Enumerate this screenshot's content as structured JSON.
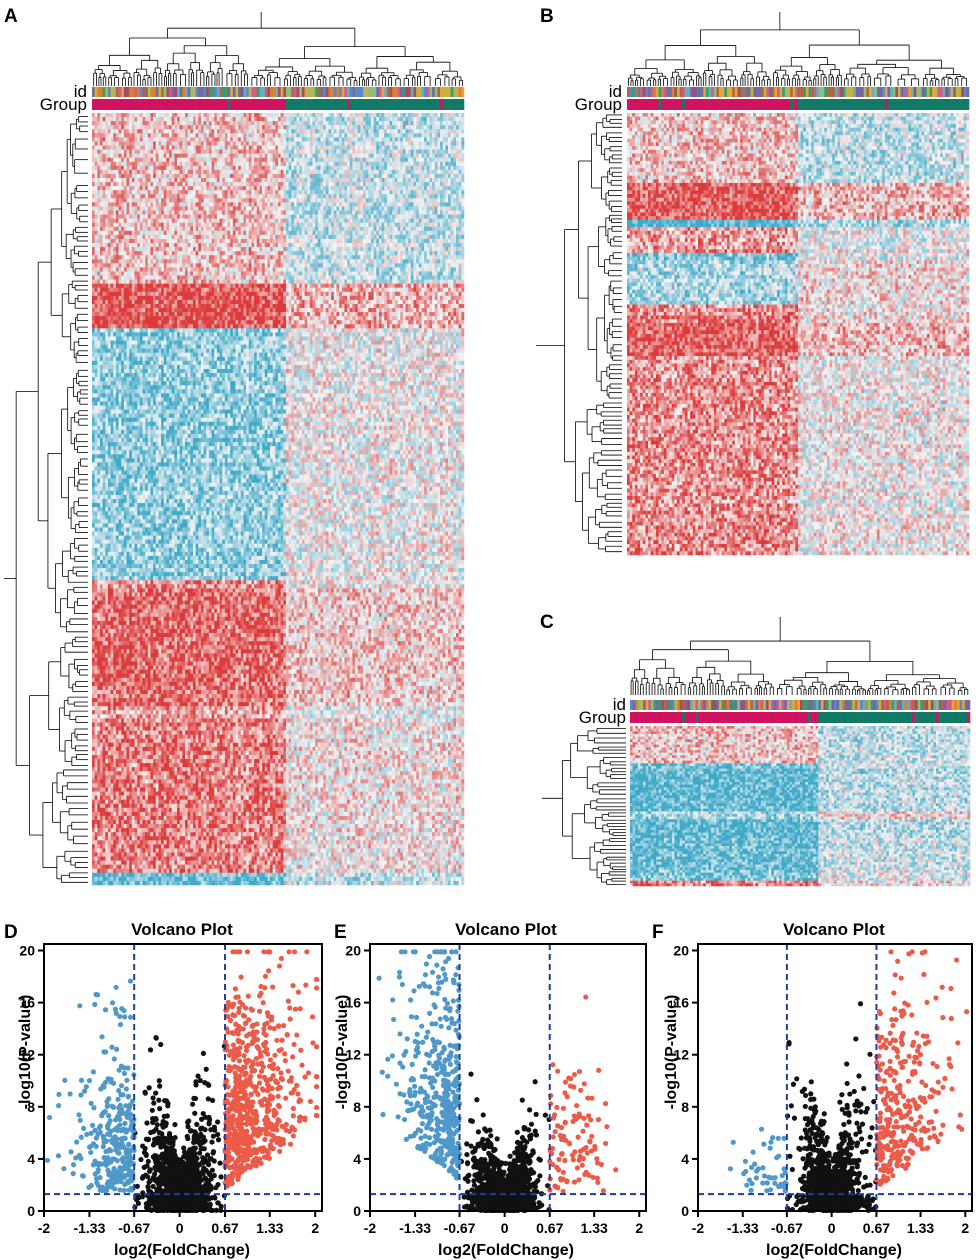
{
  "colors": {
    "heat_low": "#3ea9c8",
    "heat_mid": "#f4f4f4",
    "heat_high": "#dd3a3a",
    "group_a": "#d0125f",
    "group_b": "#117a67",
    "down": "#4f98c9",
    "up": "#ec5a48",
    "ns": "#111111",
    "threshold": "#1f3d99"
  },
  "heatmaps": [
    {
      "letter": "A",
      "id_label": "id",
      "group_label": "Group",
      "columns": 140,
      "rows": 190,
      "group_split": 0.52,
      "seed": 11
    },
    {
      "letter": "B",
      "id_label": "id",
      "group_label": "Group",
      "columns": 130,
      "rows": 120,
      "group_split": 0.5,
      "seed": 23
    },
    {
      "letter": "C",
      "id_label": "id",
      "group_label": "Group",
      "columns": 130,
      "rows": 60,
      "group_split": 0.55,
      "seed": 37
    }
  ],
  "chart_data": [
    {
      "type": "scatter",
      "letter": "D",
      "title": "Volcano Plot",
      "xlabel": "log2(FoldChange)",
      "ylabel": "-log10(P-value)",
      "xlim": [
        -2,
        2.1
      ],
      "ylim": [
        0,
        20.5
      ],
      "xticks": [
        -2,
        -1.33,
        -0.67,
        0,
        0.67,
        1.33,
        2
      ],
      "xtick_labels": [
        "-2",
        "-1.33",
        "-0.67",
        "0",
        "0.67",
        "1.33",
        "2"
      ],
      "yticks": [
        0,
        4,
        8,
        12,
        16,
        20
      ],
      "ytick_labels": [
        "0",
        "4",
        "8",
        "12",
        "16",
        "20"
      ],
      "fc_threshold": 0.67,
      "p_threshold": 1.3,
      "series": [
        {
          "name": "down",
          "n": 300
        },
        {
          "name": "not significant",
          "n": 1600
        },
        {
          "name": "up",
          "n": 650
        }
      ],
      "seed": 101
    },
    {
      "type": "scatter",
      "letter": "E",
      "title": "Volcano Plot",
      "xlabel": "log2(FoldChange)",
      "ylabel": "-log10(P-value)",
      "xlim": [
        -2,
        2.1
      ],
      "ylim": [
        0,
        20.5
      ],
      "xticks": [
        -2,
        -1.33,
        -0.67,
        0,
        0.67,
        1.33,
        2
      ],
      "xtick_labels": [
        "-2",
        "-1.33",
        "-0.67",
        "0",
        "0.67",
        "1.33",
        "2"
      ],
      "yticks": [
        0,
        4,
        8,
        12,
        16,
        20
      ],
      "ytick_labels": [
        "0",
        "4",
        "8",
        "12",
        "16",
        "20"
      ],
      "fc_threshold": 0.67,
      "p_threshold": 1.3,
      "series": [
        {
          "name": "down",
          "n": 420
        },
        {
          "name": "not significant",
          "n": 1500
        },
        {
          "name": "up",
          "n": 110
        }
      ],
      "seed": 202
    },
    {
      "type": "scatter",
      "letter": "F",
      "title": "Volcano Plot",
      "xlabel": "log2(FoldChange)",
      "ylabel": "-log10(P-value)",
      "xlim": [
        -2,
        2.1
      ],
      "ylim": [
        0,
        20.5
      ],
      "xticks": [
        -2,
        -1.33,
        -0.67,
        0,
        0.67,
        1.33,
        2
      ],
      "xtick_labels": [
        "-2",
        "-1.33",
        "-0.67",
        "0",
        "0.67",
        "1.33",
        "2"
      ],
      "yticks": [
        0,
        4,
        8,
        12,
        16,
        20
      ],
      "ytick_labels": [
        "0",
        "4",
        "8",
        "12",
        "16",
        "20"
      ],
      "fc_threshold": 0.67,
      "p_threshold": 1.3,
      "series": [
        {
          "name": "down",
          "n": 45
        },
        {
          "name": "not significant",
          "n": 1200
        },
        {
          "name": "up",
          "n": 330
        }
      ],
      "seed": 303
    }
  ]
}
